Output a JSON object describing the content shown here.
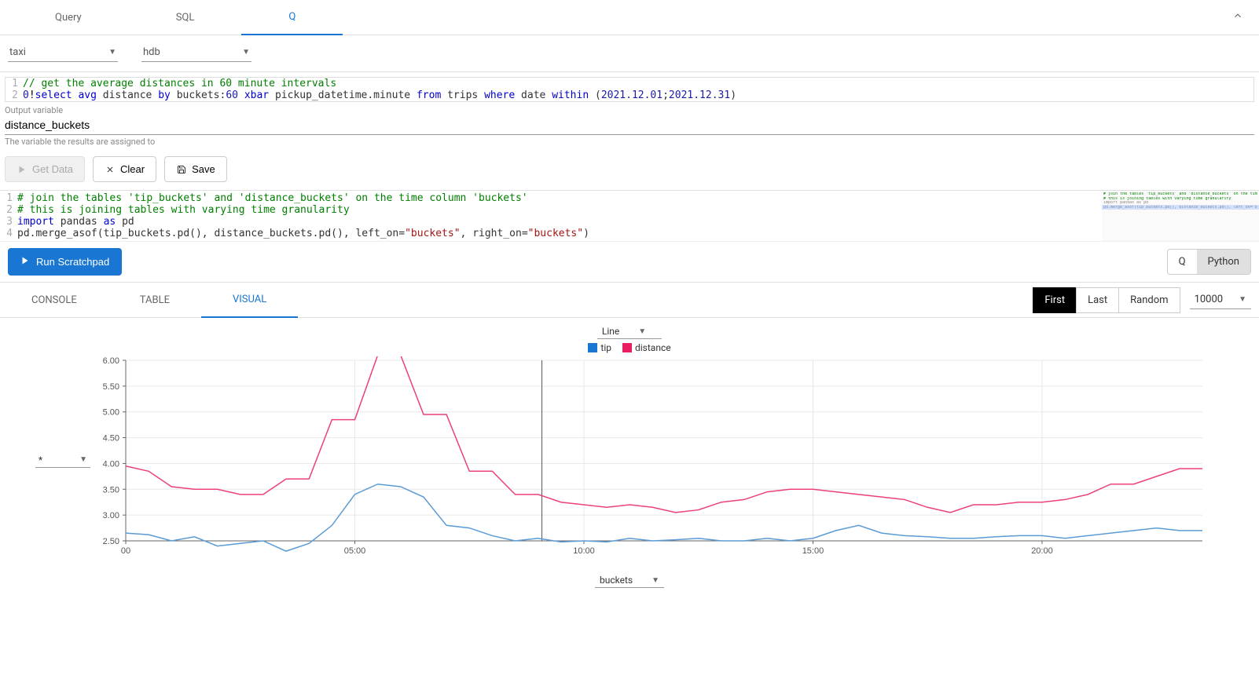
{
  "top_tabs": {
    "query": "Query",
    "sql": "SQL",
    "q": "Q",
    "active": "q"
  },
  "selects": {
    "dataset": "taxi",
    "db": "hdb"
  },
  "editor1": {
    "lines": [
      {
        "n": 1,
        "tokens": [
          {
            "t": "// get the average distances in 60 minute intervals",
            "c": "tok-comment"
          }
        ]
      },
      {
        "n": 2,
        "tokens": [
          {
            "t": "0",
            "c": "tok-num"
          },
          {
            "t": "!",
            "c": "tok-op"
          },
          {
            "t": "select",
            "c": "tok-key"
          },
          {
            "t": " ",
            "c": ""
          },
          {
            "t": "avg",
            "c": "tok-key"
          },
          {
            "t": " distance ",
            "c": ""
          },
          {
            "t": "by",
            "c": "tok-key"
          },
          {
            "t": " buckets:",
            "c": ""
          },
          {
            "t": "60",
            "c": "tok-num"
          },
          {
            "t": " ",
            "c": ""
          },
          {
            "t": "xbar",
            "c": "tok-key"
          },
          {
            "t": " pickup_datetime.minute ",
            "c": ""
          },
          {
            "t": "from",
            "c": "tok-key"
          },
          {
            "t": " trips ",
            "c": ""
          },
          {
            "t": "where",
            "c": "tok-key"
          },
          {
            "t": " date ",
            "c": ""
          },
          {
            "t": "within",
            "c": "tok-key"
          },
          {
            "t": " (",
            "c": ""
          },
          {
            "t": "2021.12.01",
            "c": "tok-num"
          },
          {
            "t": ";",
            "c": ""
          },
          {
            "t": "2021.12.31",
            "c": "tok-num"
          },
          {
            "t": ")",
            "c": ""
          }
        ]
      }
    ]
  },
  "outvar": {
    "label": "Output variable",
    "value": "distance_buckets",
    "help": "The variable the results are assigned to"
  },
  "buttons": {
    "get_data": "Get Data",
    "clear": "Clear",
    "save": "Save"
  },
  "editor2": {
    "lines": [
      {
        "n": 1,
        "tokens": [
          {
            "t": "# join the tables 'tip_buckets' and 'distance_buckets' on the time column 'buckets'",
            "c": "tok-comment"
          }
        ]
      },
      {
        "n": 2,
        "tokens": [
          {
            "t": "# this is joining tables with varying time granularity",
            "c": "tok-comment"
          }
        ]
      },
      {
        "n": 3,
        "tokens": [
          {
            "t": "import",
            "c": "tok-key"
          },
          {
            "t": " pandas ",
            "c": ""
          },
          {
            "t": "as",
            "c": "tok-key"
          },
          {
            "t": " pd",
            "c": ""
          }
        ]
      },
      {
        "n": 4,
        "tokens": [
          {
            "t": "pd.merge_asof(tip_buckets.pd(), distance_buckets.pd(), left_on=",
            "c": ""
          },
          {
            "t": "\"buckets\"",
            "c": "tok-str"
          },
          {
            "t": ", right_on=",
            "c": ""
          },
          {
            "t": "\"buckets\"",
            "c": "tok-str"
          },
          {
            "t": ")",
            "c": ""
          }
        ]
      }
    ],
    "minimap_lines": [
      "# join the tables 'tip_buckets' and 'distance_buckets' on the time column 'buckets'",
      "# this is joining tables with varying time granularity",
      "import pandas as pd",
      "pd.merge_asof(tip_buckets.pd(), distance_buckets.pd(), left_on=\"buckets\", right_on=\"buckets\")"
    ]
  },
  "run": {
    "label": "Run Scratchpad",
    "lang_q": "Q",
    "lang_py": "Python",
    "active": "python"
  },
  "result_tabs": {
    "console": "CONSOLE",
    "table": "TABLE",
    "visual": "VISUAL",
    "active": "visual"
  },
  "paging": {
    "first": "First",
    "last": "Last",
    "random": "Random",
    "count": "10000",
    "active": "first"
  },
  "chart": {
    "type_label": "Line",
    "legend": [
      {
        "label": "tip",
        "color": "#1976d2"
      },
      {
        "label": "distance",
        "color": "#e91e63"
      }
    ],
    "y_select": "*",
    "x_select": "buckets",
    "ylim": [
      2.5,
      6.0
    ],
    "ytick_step": 0.5,
    "x_ticks": [
      {
        "pos": 0,
        "label": "00"
      },
      {
        "pos": 300,
        "label": "05:00"
      },
      {
        "pos": 600,
        "label": "10:00"
      },
      {
        "pos": 900,
        "label": "15:00"
      },
      {
        "pos": 1200,
        "label": "20:00"
      }
    ],
    "x_max": 1410,
    "cursor_x": 545,
    "grid_color": "#e8e8e8",
    "axis_color": "#666",
    "background": "#ffffff",
    "series": {
      "tip": {
        "color": "#5a9bd5",
        "data": [
          [
            0,
            2.65
          ],
          [
            30,
            2.62
          ],
          [
            60,
            2.5
          ],
          [
            90,
            2.58
          ],
          [
            120,
            2.4
          ],
          [
            150,
            2.45
          ],
          [
            180,
            2.5
          ],
          [
            210,
            2.3
          ],
          [
            240,
            2.45
          ],
          [
            270,
            2.8
          ],
          [
            300,
            3.4
          ],
          [
            330,
            3.6
          ],
          [
            360,
            3.55
          ],
          [
            390,
            3.35
          ],
          [
            420,
            2.8
          ],
          [
            450,
            2.75
          ],
          [
            480,
            2.6
          ],
          [
            510,
            2.5
          ],
          [
            540,
            2.55
          ],
          [
            570,
            2.48
          ],
          [
            600,
            2.5
          ],
          [
            630,
            2.48
          ],
          [
            660,
            2.55
          ],
          [
            690,
            2.5
          ],
          [
            720,
            2.52
          ],
          [
            750,
            2.55
          ],
          [
            780,
            2.5
          ],
          [
            810,
            2.5
          ],
          [
            840,
            2.55
          ],
          [
            870,
            2.5
          ],
          [
            900,
            2.55
          ],
          [
            930,
            2.7
          ],
          [
            960,
            2.8
          ],
          [
            990,
            2.65
          ],
          [
            1020,
            2.6
          ],
          [
            1050,
            2.58
          ],
          [
            1080,
            2.55
          ],
          [
            1110,
            2.55
          ],
          [
            1140,
            2.58
          ],
          [
            1170,
            2.6
          ],
          [
            1200,
            2.6
          ],
          [
            1230,
            2.55
          ],
          [
            1260,
            2.6
          ],
          [
            1290,
            2.65
          ],
          [
            1320,
            2.7
          ],
          [
            1350,
            2.75
          ],
          [
            1380,
            2.7
          ],
          [
            1410,
            2.7
          ]
        ]
      },
      "distance": {
        "color": "#ec407a",
        "data": [
          [
            0,
            3.95
          ],
          [
            30,
            3.85
          ],
          [
            60,
            3.55
          ],
          [
            90,
            3.5
          ],
          [
            120,
            3.5
          ],
          [
            150,
            3.4
          ],
          [
            180,
            3.4
          ],
          [
            210,
            3.7
          ],
          [
            240,
            3.7
          ],
          [
            270,
            4.85
          ],
          [
            300,
            4.85
          ],
          [
            330,
            6.1
          ],
          [
            360,
            6.1
          ],
          [
            390,
            4.95
          ],
          [
            420,
            4.95
          ],
          [
            450,
            3.85
          ],
          [
            480,
            3.85
          ],
          [
            510,
            3.4
          ],
          [
            540,
            3.4
          ],
          [
            570,
            3.25
          ],
          [
            600,
            3.2
          ],
          [
            630,
            3.15
          ],
          [
            660,
            3.2
          ],
          [
            690,
            3.15
          ],
          [
            720,
            3.05
          ],
          [
            750,
            3.1
          ],
          [
            780,
            3.25
          ],
          [
            810,
            3.3
          ],
          [
            840,
            3.45
          ],
          [
            870,
            3.5
          ],
          [
            900,
            3.5
          ],
          [
            930,
            3.45
          ],
          [
            960,
            3.4
          ],
          [
            990,
            3.35
          ],
          [
            1020,
            3.3
          ],
          [
            1050,
            3.15
          ],
          [
            1080,
            3.05
          ],
          [
            1110,
            3.2
          ],
          [
            1140,
            3.2
          ],
          [
            1170,
            3.25
          ],
          [
            1200,
            3.25
          ],
          [
            1230,
            3.3
          ],
          [
            1260,
            3.4
          ],
          [
            1290,
            3.6
          ],
          [
            1320,
            3.6
          ],
          [
            1350,
            3.75
          ],
          [
            1380,
            3.9
          ],
          [
            1410,
            3.9
          ]
        ]
      }
    }
  }
}
